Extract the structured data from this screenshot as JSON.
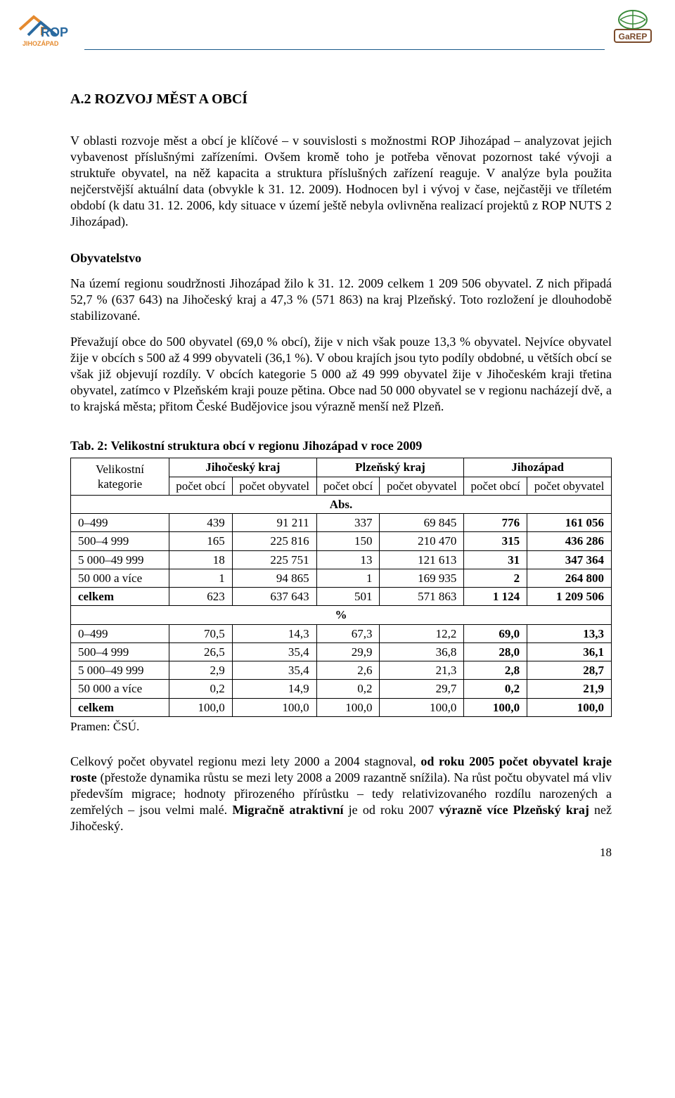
{
  "logos": {
    "left_name": "ROP Jihozápad",
    "right_name": "GaREP"
  },
  "colors": {
    "rule": "#1a5a8a",
    "logo_left_orange": "#e58a2e",
    "logo_left_blue": "#2a6aa0",
    "logo_right_green": "#3a8a3a",
    "logo_right_brown": "#7a4a2a"
  },
  "title": "A.2 ROZVOJ MĚST A OBCÍ",
  "para_intro": [
    "V oblasti rozvoje měst a obcí je klíčové – v souvislosti s možnostmi ROP Jihozápad – analyzovat jejich vybavenost příslušnými zařízeními.",
    "Ovšem kromě toho je potřeba věnovat pozornost také vývoji a struktuře obyvatel, na něž kapacita a struktura příslušných zařízení reaguje. V analýze byla použita nejčerstvější aktuální data (obvykle k 31. 12. 2009). Hodnocen byl i vývoj v čase, nejčastěji ve tříletém období (k datu 31. 12. 2006, kdy situace v území ještě nebyla ovlivněna realizací projektů z ROP NUTS 2 Jihozápad)."
  ],
  "subhead_obyvatelstvo": "Obyvatelstvo",
  "para_obyv": [
    "Na území regionu soudržnosti Jihozápad žilo k 31. 12. 2009 celkem 1 209 506 obyvatel. Z nich připadá 52,7 % (637 643) na Jihočeský kraj a 47,3 % (571 863) na kraj Plzeňský. Toto rozložení je dlouhodobě stabilizované.",
    "Převažují obce do 500 obyvatel (69,0 % obcí), žije v nich však pouze 13,3 % obyvatel. Nejvíce obyvatel žije v obcích s 500 až 4 999 obyvateli (36,1 %). V obou krajích jsou tyto podíly obdobné, u větších obcí se však již objevují rozdíly. V obcích kategorie 5 000 až 49 999 obyvatel žije v Jihočeském kraji třetina obyvatel, zatímco v Plzeňském kraji pouze pětina. Obce nad 50 000 obyvatel se v regionu nacházejí dvě, a to krajská města; přitom České Budějovice jsou výrazně menší než Plzeň."
  ],
  "table": {
    "caption": "Tab. 2: Velikostní struktura obcí v regionu Jihozápad v roce 2009",
    "corner": "Velikostní kategorie",
    "regions": [
      "Jihočeský kraj",
      "Plzeňský kraj",
      "Jihozápad"
    ],
    "subheads": [
      "počet obcí",
      "počet obyvatel"
    ],
    "section_abs": "Abs.",
    "section_pct": "%",
    "rows_abs": [
      {
        "label": "0–499",
        "v": [
          "439",
          "91 211",
          "337",
          "69 845",
          "776",
          "161 056"
        ]
      },
      {
        "label": "500–4 999",
        "v": [
          "165",
          "225 816",
          "150",
          "210 470",
          "315",
          "436 286"
        ]
      },
      {
        "label": "5 000–49 999",
        "v": [
          "18",
          "225 751",
          "13",
          "121 613",
          "31",
          "347 364"
        ]
      },
      {
        "label": "50 000 a více",
        "v": [
          "1",
          "94 865",
          "1",
          "169 935",
          "2",
          "264 800"
        ]
      },
      {
        "label": "celkem",
        "v": [
          "623",
          "637 643",
          "501",
          "571 863",
          "1 124",
          "1 209 506"
        ],
        "total": true
      }
    ],
    "rows_pct": [
      {
        "label": "0–499",
        "v": [
          "70,5",
          "14,3",
          "67,3",
          "12,2",
          "69,0",
          "13,3"
        ]
      },
      {
        "label": "500–4 999",
        "v": [
          "26,5",
          "35,4",
          "29,9",
          "36,8",
          "28,0",
          "36,1"
        ]
      },
      {
        "label": "5 000–49 999",
        "v": [
          "2,9",
          "35,4",
          "2,6",
          "21,3",
          "2,8",
          "28,7"
        ]
      },
      {
        "label": "50 000 a více",
        "v": [
          "0,2",
          "14,9",
          "0,2",
          "29,7",
          "0,2",
          "21,9"
        ]
      },
      {
        "label": "celkem",
        "v": [
          "100,0",
          "100,0",
          "100,0",
          "100,0",
          "100,0",
          "100,0"
        ],
        "total": true
      }
    ],
    "source": "Pramen: ČSÚ."
  },
  "para_foot_html": "Celkový počet obyvatel regionu mezi lety 2000 a 2004 stagnoval, <b>od roku 2005 počet obyvatel kraje roste</b> (přestože dynamika růstu se mezi lety 2008 a 2009 razantně snížila). Na růst počtu obyvatel má vliv především migrace; hodnoty přirozeného přírůstku – tedy relativizovaného rozdílu narozených a zemřelých – jsou velmi malé. <b>Migračně atraktivní</b> je od roku 2007 <b>výrazně více Plzeňský kraj</b> než Jihočeský.",
  "page_number": "18"
}
